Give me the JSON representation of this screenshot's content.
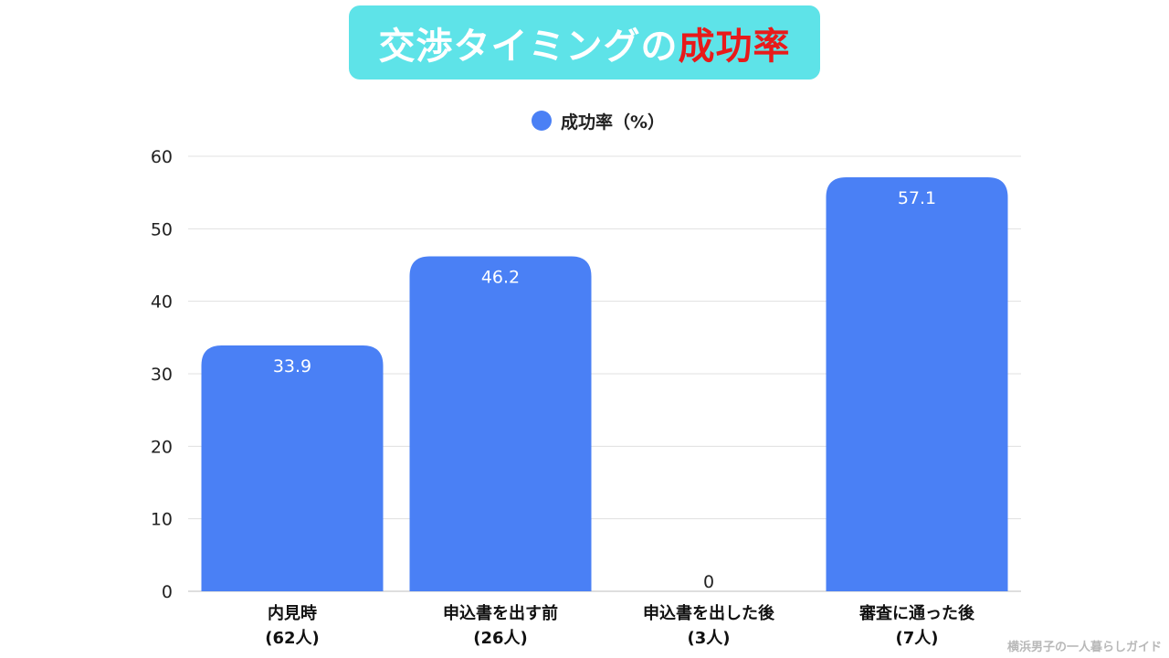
{
  "title": {
    "main": "交渉タイミングの",
    "accent": "成功率",
    "accent_color": "#e81a1a",
    "background_color": "#5ee3e8"
  },
  "watermark": "横浜男子の一人暮らしガイド",
  "chart_data": {
    "type": "bar",
    "categories": [
      [
        "内見時",
        "(62人)"
      ],
      [
        "申込書を出す前",
        "(26人)"
      ],
      [
        "申込書を出した後",
        "(3人)"
      ],
      [
        "審査に通った後",
        "(7人)"
      ]
    ],
    "series": [
      {
        "name": "成功率（%）",
        "values": [
          33.9,
          46.2,
          0,
          57.1
        ],
        "labels": [
          "33.9",
          "46.2",
          "0",
          "57.1"
        ],
        "color": "#4a80f5"
      }
    ],
    "ylim": [
      0,
      60
    ],
    "yticks": [
      0,
      10,
      20,
      30,
      40,
      50,
      60
    ],
    "grid": true,
    "legend_position": "top-center",
    "xlabel": "",
    "ylabel": ""
  }
}
